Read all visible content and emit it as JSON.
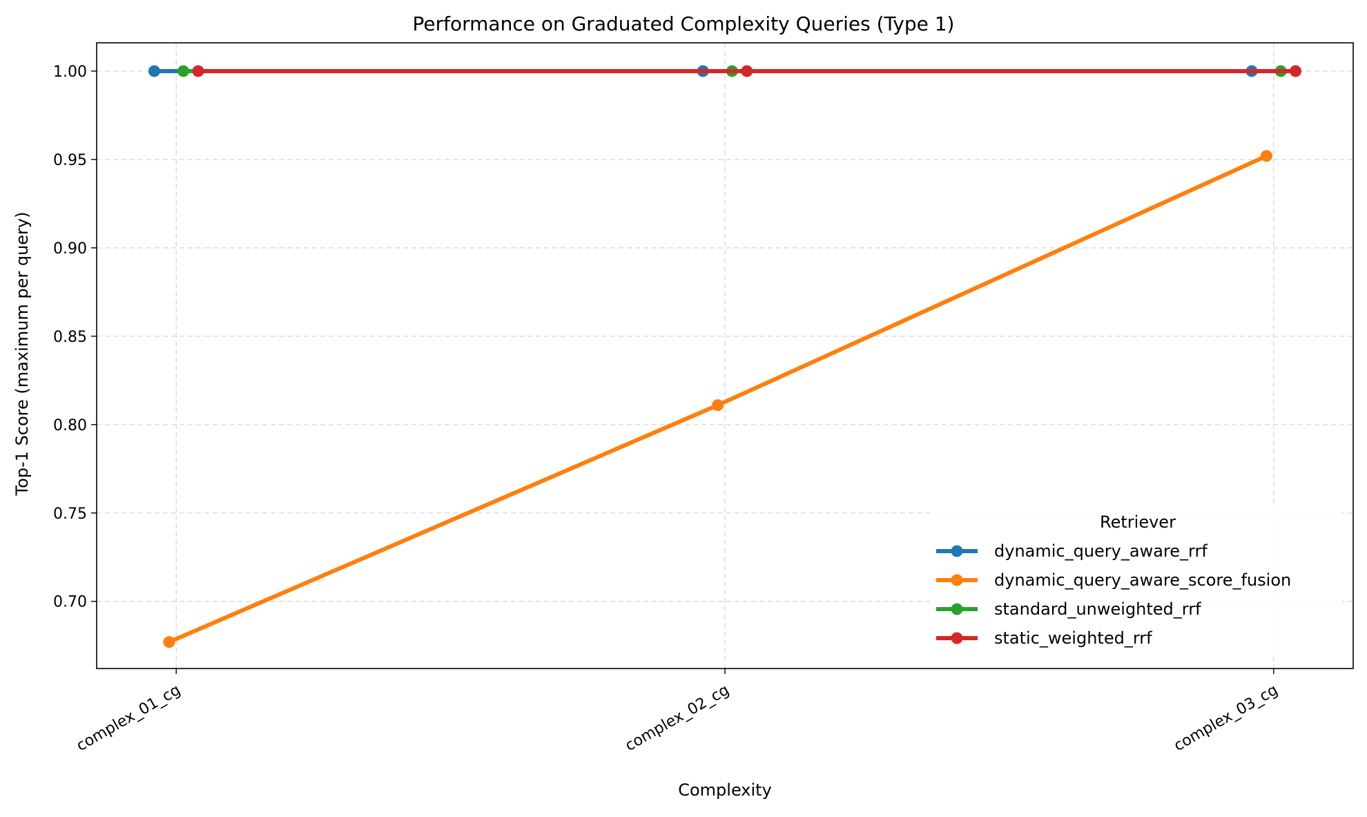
{
  "chart_data": {
    "type": "line",
    "title": "Performance on Graduated Complexity Queries (Type 1)",
    "xlabel": "Complexity",
    "ylabel": "Top-1 Score (maximum per query)",
    "categories": [
      "complex_01_cg",
      "complex_02_cg",
      "complex_03_cg"
    ],
    "ylim": [
      0.662,
      1.016
    ],
    "yticks": [
      0.7,
      0.75,
      0.8,
      0.85,
      0.9,
      0.95,
      1.0
    ],
    "ytick_labels": [
      "0.70",
      "0.75",
      "0.80",
      "0.85",
      "0.90",
      "0.95",
      "1.00"
    ],
    "grid": true,
    "legend": {
      "title": "Retriever",
      "placement": "lower-right"
    },
    "series": [
      {
        "name": "dynamic_query_aware_rrf",
        "color": "#1f77b4",
        "offset": -0.04,
        "values": [
          1.0,
          1.0,
          1.0
        ]
      },
      {
        "name": "dynamic_query_aware_score_fusion",
        "color": "#ff7f0e",
        "offset": -0.013,
        "values": [
          0.677,
          0.811,
          0.952
        ]
      },
      {
        "name": "standard_unweighted_rrf",
        "color": "#2ca02c",
        "offset": 0.013,
        "values": [
          1.0,
          1.0,
          1.0
        ]
      },
      {
        "name": "static_weighted_rrf",
        "color": "#d62728",
        "offset": 0.04,
        "values": [
          1.0,
          1.0,
          1.0
        ]
      }
    ]
  }
}
